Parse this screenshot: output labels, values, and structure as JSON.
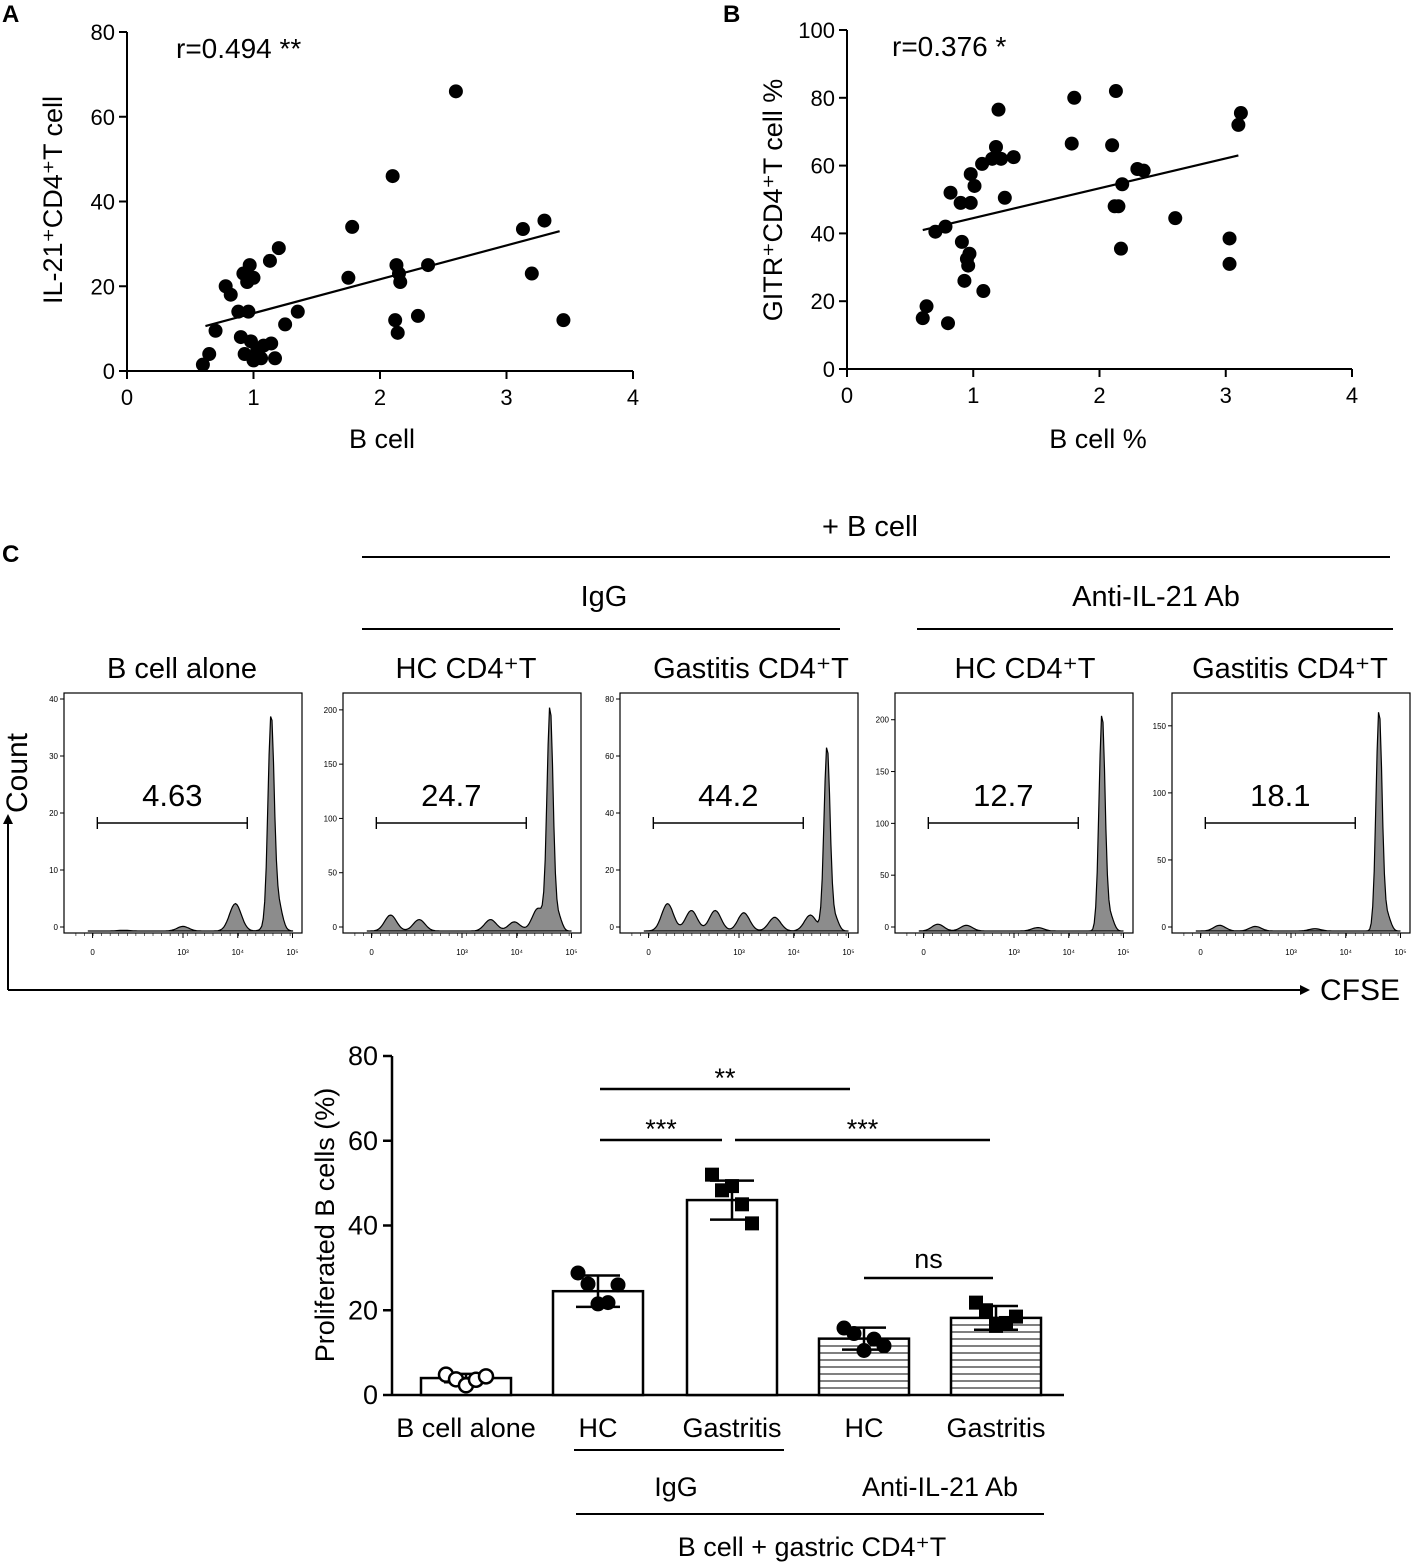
{
  "panels": {
    "a": "A",
    "b": "B",
    "c": "C"
  },
  "chart_data": [
    {
      "id": "A",
      "type": "scatter",
      "title": "",
      "xlabel": "B cell",
      "ylabel": "IL-21⁺CD4⁺T cell",
      "xlim": [
        0,
        4
      ],
      "ylim": [
        0,
        80
      ],
      "xticks": [
        "0",
        "1",
        "2",
        "3",
        "4"
      ],
      "yticks": [
        "0",
        "20",
        "40",
        "60",
        "80"
      ],
      "annotation": "r=0.494 **",
      "trendline": {
        "x": [
          0.62,
          3.42
        ],
        "y": [
          10.6,
          33.0
        ]
      },
      "points": [
        [
          0.6,
          1.5
        ],
        [
          0.65,
          4
        ],
        [
          0.7,
          9.5
        ],
        [
          0.78,
          20
        ],
        [
          0.82,
          18
        ],
        [
          0.88,
          14
        ],
        [
          0.9,
          8
        ],
        [
          0.92,
          23
        ],
        [
          0.93,
          4
        ],
        [
          0.95,
          21
        ],
        [
          0.96,
          14
        ],
        [
          0.97,
          25
        ],
        [
          0.98,
          7
        ],
        [
          1.0,
          2.5
        ],
        [
          1.0,
          22
        ],
        [
          1.03,
          5
        ],
        [
          1.06,
          3
        ],
        [
          1.08,
          6
        ],
        [
          1.13,
          26
        ],
        [
          1.14,
          6.5
        ],
        [
          1.17,
          3
        ],
        [
          1.2,
          29
        ],
        [
          1.25,
          11
        ],
        [
          1.35,
          14
        ],
        [
          1.75,
          22
        ],
        [
          1.78,
          34
        ],
        [
          2.1,
          46
        ],
        [
          2.12,
          12
        ],
        [
          2.13,
          25
        ],
        [
          2.14,
          9
        ],
        [
          2.15,
          23
        ],
        [
          2.16,
          21
        ],
        [
          2.3,
          13
        ],
        [
          2.38,
          25
        ],
        [
          2.6,
          66
        ],
        [
          3.13,
          33.5
        ],
        [
          3.2,
          23
        ],
        [
          3.3,
          35.5
        ],
        [
          3.45,
          12
        ]
      ]
    },
    {
      "id": "B",
      "type": "scatter",
      "title": "",
      "xlabel": "B cell %",
      "ylabel": "GITR⁺CD4⁺T cell %",
      "xlim": [
        0,
        4
      ],
      "ylim": [
        0,
        100
      ],
      "xticks": [
        "0",
        "1",
        "2",
        "3",
        "4"
      ],
      "yticks": [
        "0",
        "20",
        "40",
        "60",
        "80",
        "100"
      ],
      "annotation": "r=0.376 *",
      "trendline": {
        "x": [
          0.6,
          3.1
        ],
        "y": [
          41,
          63
        ]
      },
      "points": [
        [
          0.6,
          15
        ],
        [
          0.63,
          18.5
        ],
        [
          0.7,
          40.5
        ],
        [
          0.78,
          42
        ],
        [
          0.8,
          13.5
        ],
        [
          0.82,
          52
        ],
        [
          0.9,
          49
        ],
        [
          0.91,
          37.5
        ],
        [
          0.93,
          26
        ],
        [
          0.95,
          32.5
        ],
        [
          0.96,
          30.5
        ],
        [
          0.97,
          34
        ],
        [
          0.98,
          57.5
        ],
        [
          0.98,
          49
        ],
        [
          1.01,
          54
        ],
        [
          1.07,
          60.5
        ],
        [
          1.08,
          23
        ],
        [
          1.15,
          62
        ],
        [
          1.18,
          65.5
        ],
        [
          1.2,
          76.5
        ],
        [
          1.22,
          62
        ],
        [
          1.25,
          50.5
        ],
        [
          1.32,
          62.5
        ],
        [
          1.78,
          66.5
        ],
        [
          1.8,
          80
        ],
        [
          2.1,
          66
        ],
        [
          2.12,
          48
        ],
        [
          2.13,
          82
        ],
        [
          2.15,
          48
        ],
        [
          2.17,
          35.5
        ],
        [
          2.18,
          54.5
        ],
        [
          2.3,
          59
        ],
        [
          2.35,
          58.5
        ],
        [
          2.6,
          44.5
        ],
        [
          3.03,
          38.5
        ],
        [
          3.03,
          31
        ],
        [
          3.1,
          72
        ],
        [
          3.12,
          75.5
        ]
      ]
    },
    {
      "id": "C-bar",
      "type": "bar",
      "title": "",
      "xlabel": "",
      "ylabel": "Proliferated B cells (%)",
      "ylim": [
        0,
        80
      ],
      "yticks": [
        "0",
        "20",
        "40",
        "60",
        "80"
      ],
      "categories": [
        "B cell alone",
        "HC",
        "Gastritis",
        "HC",
        "Gastritis"
      ],
      "values": [
        4.0,
        24.5,
        46.0,
        13.3,
        18.2
      ],
      "sd": [
        1.0,
        3.7,
        4.6,
        2.6,
        2.8
      ],
      "hatched": [
        false,
        false,
        false,
        true,
        true
      ],
      "markers": [
        "open-circle",
        "circle",
        "square",
        "circle",
        "square"
      ],
      "replicates": [
        [
          4.8,
          3.7,
          2.3,
          3.6,
          4.4
        ],
        [
          28.8,
          26.2,
          21.5,
          21.8,
          26.0
        ],
        [
          52.0,
          48.3,
          49.3,
          45.0,
          40.5
        ],
        [
          15.8,
          14.5,
          10.5,
          13.2,
          11.6
        ],
        [
          21.8,
          20.0,
          16.3,
          17.0,
          18.5
        ]
      ],
      "significance": [
        {
          "label": "**",
          "from": 1,
          "to": 3
        },
        {
          "label": "***",
          "from": 1,
          "to": 2
        },
        {
          "label": "***",
          "from": 2,
          "to": 4
        },
        {
          "label": "ns",
          "from": 3,
          "to": 4
        }
      ],
      "group_labels": {
        "igg": "IgG",
        "anti": "Anti-IL-21 Ab",
        "all": "B cell + gastric CD4⁺T"
      }
    }
  ],
  "flow": {
    "header_bcell": "+ B cell",
    "header_igg": "IgG",
    "header_anti": "Anti-IL-21 Ab",
    "ylabel": "Count",
    "xlabel": "CFSE",
    "xticks": [
      "0",
      "10³",
      "10⁴",
      "10⁵"
    ],
    "histograms": [
      {
        "title": "B cell alone",
        "gate": "4.63",
        "ymax": 40,
        "yticks": [
          "0",
          "10",
          "20",
          "30",
          "40"
        ],
        "peak": 34.5,
        "bumps": [
          [
            0.25,
            0.003
          ],
          [
            0.5,
            0.02
          ],
          [
            0.72,
            0.12
          ],
          [
            0.88,
            0.1
          ]
        ]
      },
      {
        "title": "HC CD4⁺T",
        "gate": "24.7",
        "ymax": 210,
        "yticks": [
          "0",
          "50",
          "100",
          "150",
          "200"
        ],
        "peak": 205,
        "bumps": [
          [
            0.2,
            0.07
          ],
          [
            0.32,
            0.05
          ],
          [
            0.62,
            0.05
          ],
          [
            0.72,
            0.04
          ],
          [
            0.82,
            0.1
          ]
        ]
      },
      {
        "title": "Gastitis CD4⁺T",
        "gate": "44.2",
        "ymax": 80,
        "yticks": [
          "0",
          "20",
          "40",
          "60",
          "80"
        ],
        "peak": 65,
        "bumps": [
          [
            0.2,
            0.12
          ],
          [
            0.3,
            0.09
          ],
          [
            0.4,
            0.09
          ],
          [
            0.52,
            0.08
          ],
          [
            0.65,
            0.06
          ],
          [
            0.8,
            0.07
          ]
        ]
      },
      {
        "title": "HC CD4⁺T",
        "gate": "12.7",
        "ymax": 220,
        "yticks": [
          "0",
          "50",
          "100",
          "150",
          "200"
        ],
        "peak": 210,
        "bumps": [
          [
            0.18,
            0.03
          ],
          [
            0.3,
            0.025
          ],
          [
            0.6,
            0.015
          ]
        ]
      },
      {
        "title": "Gastitis CD4⁺T",
        "gate": "18.1",
        "ymax": 170,
        "yticks": [
          "0",
          "50",
          "100",
          "150"
        ],
        "peak": 165,
        "bumps": [
          [
            0.2,
            0.025
          ],
          [
            0.35,
            0.02
          ],
          [
            0.6,
            0.01
          ]
        ]
      }
    ]
  }
}
